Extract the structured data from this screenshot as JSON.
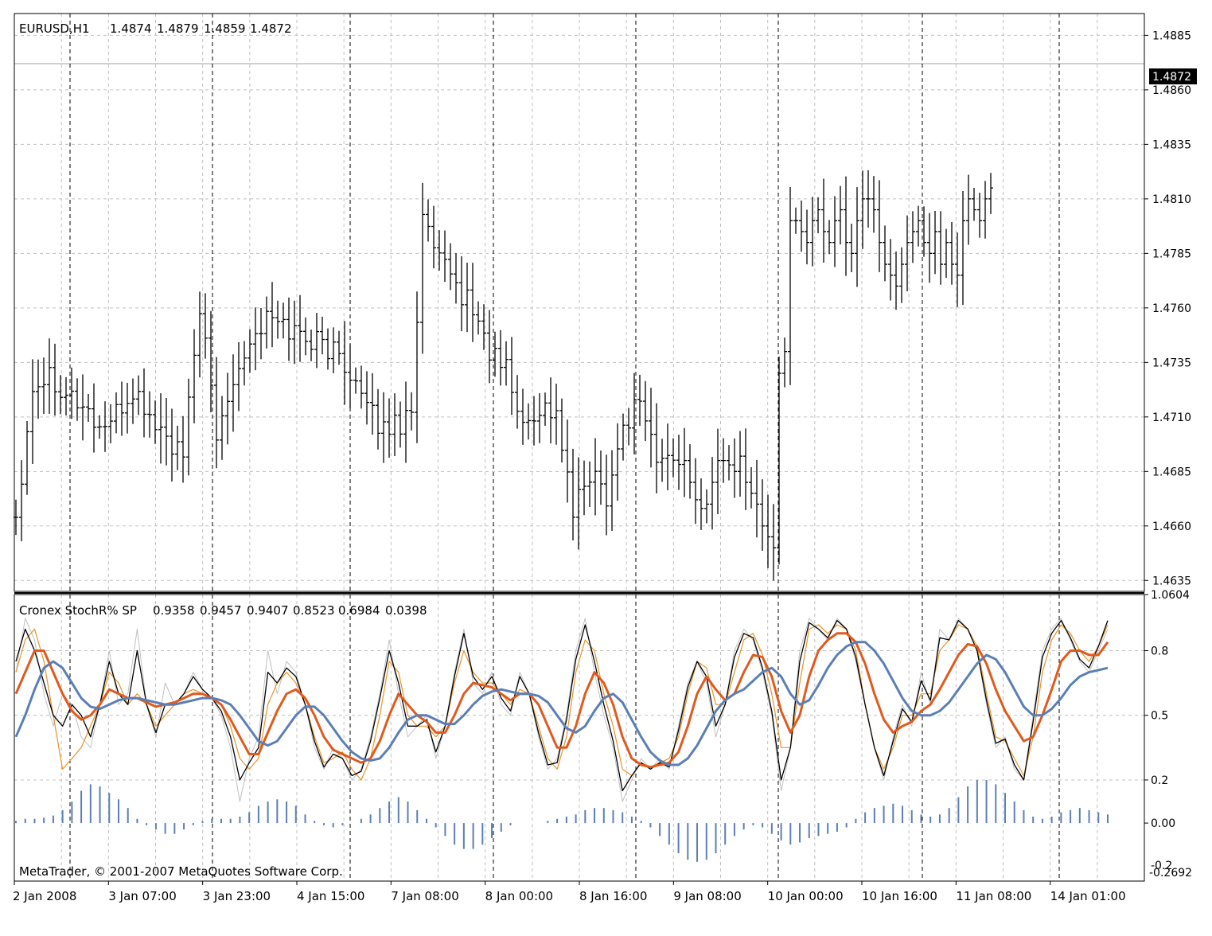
{
  "chart_data": [
    {
      "type": "ohlc",
      "panel": "price",
      "symbol_header": "EURUSD,H1",
      "ohlc_header": [
        "1.4874",
        "1.4879",
        "1.4859",
        "1.4872"
      ],
      "current_price": "1.4872",
      "current_value": 1.4872,
      "ylim": [
        1.463,
        1.4895
      ],
      "y_ticks": [
        1.4885,
        1.486,
        1.4835,
        1.481,
        1.4785,
        1.476,
        1.4735,
        1.471,
        1.4685,
        1.466,
        1.4635
      ],
      "y_tick_labels": [
        "1.4885",
        "1.4860",
        "1.4835",
        "1.4810",
        "1.4785",
        "1.4760",
        "1.4735",
        "1.4710",
        "1.4685",
        "1.4660",
        "1.4635"
      ],
      "grid": true,
      "bar_count": 172,
      "anchors_close": [
        [
          0,
          1.4665
        ],
        [
          3,
          1.4725
        ],
        [
          6,
          1.473
        ],
        [
          9,
          1.4722
        ],
        [
          12,
          1.4715
        ],
        [
          15,
          1.4705
        ],
        [
          18,
          1.471
        ],
        [
          21,
          1.4722
        ],
        [
          24,
          1.471
        ],
        [
          27,
          1.47
        ],
        [
          30,
          1.469
        ],
        [
          33,
          1.4762
        ],
        [
          36,
          1.47
        ],
        [
          39,
          1.473
        ],
        [
          42,
          1.4745
        ],
        [
          45,
          1.4755
        ],
        [
          48,
          1.4752
        ],
        [
          51,
          1.4748
        ],
        [
          54,
          1.4745
        ],
        [
          57,
          1.474
        ],
        [
          60,
          1.4732
        ],
        [
          63,
          1.4712
        ],
        [
          66,
          1.4705
        ],
        [
          69,
          1.4708
        ],
        [
          71,
          1.4715
        ],
        [
          73,
          1.48
        ],
        [
          76,
          1.478
        ],
        [
          79,
          1.477
        ],
        [
          82,
          1.476
        ],
        [
          85,
          1.474
        ],
        [
          88,
          1.4732
        ],
        [
          91,
          1.4705
        ],
        [
          94,
          1.4715
        ],
        [
          97,
          1.4712
        ],
        [
          100,
          1.4665
        ],
        [
          103,
          1.4685
        ],
        [
          106,
          1.4675
        ],
        [
          109,
          1.4705
        ],
        [
          112,
          1.472
        ],
        [
          115,
          1.469
        ],
        [
          118,
          1.469
        ],
        [
          121,
          1.4695
        ],
        [
          124,
          1.469
        ],
        [
          127,
          1.468
        ],
        [
          130,
          1.469
        ],
        [
          133,
          1.47
        ],
        [
          136,
          1.471
        ],
        [
          139,
          1.4715
        ],
        [
          142,
          1.4712
        ],
        [
          145,
          1.4715
        ],
        [
          148,
          1.472
        ],
        [
          151,
          1.4718
        ],
        [
          154,
          1.4712
        ],
        [
          157,
          1.471
        ],
        [
          160,
          1.4714
        ],
        [
          162,
          1.471
        ]
      ],
      "x_tick_labels": [
        "2 Jan 2008",
        "3 Jan 07:00",
        "3 Jan 23:00",
        "4 Jan 15:00",
        "7 Jan 08:00",
        "8 Jan 00:00",
        "8 Jan 16:00",
        "9 Jan 08:00",
        "10 Jan 00:00",
        "10 Jan 16:00",
        "11 Jan 08:00",
        "14 Jan 01:00"
      ],
      "day_separators_after_bars": [
        8,
        30,
        52,
        97,
        120,
        143,
        165
      ]
    },
    {
      "type": "line",
      "panel": "indicator",
      "title": "Cronex StochR% SP",
      "header_values": [
        "0.9358",
        "0.9457",
        "0.9407",
        "0.8523",
        "0.6984",
        "0.0398"
      ],
      "y_ticks": [
        1.0604,
        0.8,
        0.5,
        0.2,
        0.0
      ],
      "y_tick_labels": [
        "1.0604",
        "0.8",
        "0.5",
        "0.2",
        "0.00"
      ],
      "y_bottom_labels": [
        "-0.2",
        "-0.2692"
      ],
      "ylim": [
        -0.2692,
        1.0604
      ],
      "series": [
        {
          "color": "#c0c0c0",
          "width": 1,
          "values": [
            0.7,
            0.95,
            0.85,
            0.6,
            0.45,
            0.6,
            0.55,
            0.4,
            0.35,
            0.55,
            0.8,
            0.55,
            0.6,
            0.9,
            0.55,
            0.4,
            0.65,
            0.55,
            0.6,
            0.7,
            0.62,
            0.58,
            0.5,
            0.35,
            0.1,
            0.3,
            0.4,
            0.8,
            0.6,
            0.75,
            0.7,
            0.55,
            0.35,
            0.25,
            0.35,
            0.3,
            0.2,
            0.25,
            0.4,
            0.6,
            0.85,
            0.6,
            0.4,
            0.45,
            0.5,
            0.3,
            0.45,
            0.7,
            0.9,
            0.65,
            0.6,
            0.7,
            0.55,
            0.5,
            0.7,
            0.6,
            0.4,
            0.25,
            0.3,
            0.5,
            0.8,
            0.95,
            0.7,
            0.5,
            0.35,
            0.1,
            0.2,
            0.3,
            0.25,
            0.3,
            0.25,
            0.45,
            0.65,
            0.75,
            0.65,
            0.4,
            0.55,
            0.8,
            0.9,
            0.85,
            0.7,
            0.5,
            0.15,
            0.35,
            0.8,
            0.95,
            0.9,
            0.85,
            0.95,
            0.9,
            0.75,
            0.55,
            0.35,
            0.2,
            0.4,
            0.55,
            0.45,
            0.7,
            0.55,
            0.9,
            0.85,
            0.95,
            0.9,
            0.8,
            0.55,
            0.35,
            0.4,
            0.25,
            0.2,
            0.5,
            0.8,
            0.9,
            0.95,
            0.85,
            0.75,
            0.7,
            0.8,
            0.9
          ]
        },
        {
          "color": "#e8932a",
          "width": 1.2,
          "values": [
            0.7,
            0.85,
            0.9,
            0.75,
            0.5,
            0.25,
            0.3,
            0.35,
            0.45,
            0.55,
            0.7,
            0.65,
            0.55,
            0.6,
            0.55,
            0.45,
            0.5,
            0.55,
            0.6,
            0.62,
            0.6,
            0.58,
            0.55,
            0.45,
            0.3,
            0.25,
            0.3,
            0.55,
            0.65,
            0.7,
            0.65,
            0.55,
            0.4,
            0.28,
            0.3,
            0.33,
            0.25,
            0.2,
            0.3,
            0.5,
            0.75,
            0.7,
            0.5,
            0.45,
            0.45,
            0.4,
            0.45,
            0.65,
            0.8,
            0.7,
            0.65,
            0.65,
            0.6,
            0.55,
            0.62,
            0.6,
            0.45,
            0.3,
            0.25,
            0.4,
            0.7,
            0.85,
            0.8,
            0.6,
            0.45,
            0.25,
            0.22,
            0.28,
            0.26,
            0.28,
            0.3,
            0.4,
            0.6,
            0.75,
            0.72,
            0.55,
            0.55,
            0.7,
            0.85,
            0.88,
            0.78,
            0.6,
            0.35,
            0.35,
            0.65,
            0.9,
            0.92,
            0.88,
            0.92,
            0.9,
            0.8,
            0.55,
            0.35,
            0.25,
            0.35,
            0.5,
            0.5,
            0.6,
            0.6,
            0.8,
            0.85,
            0.92,
            0.9,
            0.82,
            0.6,
            0.4,
            0.38,
            0.3,
            0.22,
            0.4,
            0.7,
            0.85,
            0.92,
            0.88,
            0.8,
            0.75,
            0.82,
            0.92
          ]
        },
        {
          "color": "#000000",
          "width": 1.3,
          "values": [
            0.75,
            0.9,
            0.8,
            0.65,
            0.5,
            0.45,
            0.55,
            0.5,
            0.4,
            0.55,
            0.75,
            0.6,
            0.55,
            0.8,
            0.55,
            0.42,
            0.55,
            0.55,
            0.6,
            0.68,
            0.62,
            0.58,
            0.52,
            0.4,
            0.2,
            0.28,
            0.35,
            0.7,
            0.65,
            0.72,
            0.68,
            0.55,
            0.38,
            0.26,
            0.32,
            0.3,
            0.22,
            0.24,
            0.38,
            0.58,
            0.8,
            0.65,
            0.45,
            0.45,
            0.48,
            0.33,
            0.45,
            0.68,
            0.88,
            0.68,
            0.62,
            0.68,
            0.58,
            0.52,
            0.68,
            0.6,
            0.42,
            0.27,
            0.28,
            0.48,
            0.76,
            0.92,
            0.75,
            0.55,
            0.38,
            0.15,
            0.22,
            0.28,
            0.25,
            0.28,
            0.26,
            0.43,
            0.63,
            0.75,
            0.68,
            0.45,
            0.55,
            0.77,
            0.88,
            0.86,
            0.72,
            0.52,
            0.2,
            0.35,
            0.75,
            0.93,
            0.9,
            0.86,
            0.94,
            0.9,
            0.77,
            0.55,
            0.35,
            0.22,
            0.38,
            0.53,
            0.47,
            0.66,
            0.57,
            0.86,
            0.85,
            0.94,
            0.9,
            0.8,
            0.57,
            0.37,
            0.39,
            0.27,
            0.2,
            0.47,
            0.77,
            0.88,
            0.94,
            0.86,
            0.76,
            0.72,
            0.82,
            0.94
          ]
        },
        {
          "color": "#e05a1e",
          "width": 3,
          "values": [
            0.6,
            0.7,
            0.8,
            0.8,
            0.7,
            0.6,
            0.52,
            0.48,
            0.5,
            0.55,
            0.62,
            0.6,
            0.58,
            0.58,
            0.56,
            0.54,
            0.55,
            0.56,
            0.58,
            0.6,
            0.6,
            0.58,
            0.55,
            0.48,
            0.4,
            0.32,
            0.32,
            0.42,
            0.52,
            0.6,
            0.62,
            0.58,
            0.5,
            0.4,
            0.34,
            0.32,
            0.3,
            0.28,
            0.3,
            0.38,
            0.5,
            0.6,
            0.55,
            0.5,
            0.47,
            0.42,
            0.42,
            0.5,
            0.6,
            0.65,
            0.64,
            0.63,
            0.6,
            0.57,
            0.6,
            0.6,
            0.55,
            0.45,
            0.35,
            0.35,
            0.45,
            0.6,
            0.7,
            0.65,
            0.55,
            0.4,
            0.3,
            0.27,
            0.26,
            0.27,
            0.28,
            0.33,
            0.45,
            0.6,
            0.68,
            0.62,
            0.57,
            0.6,
            0.7,
            0.78,
            0.77,
            0.68,
            0.52,
            0.42,
            0.5,
            0.68,
            0.8,
            0.85,
            0.88,
            0.88,
            0.84,
            0.74,
            0.6,
            0.48,
            0.42,
            0.45,
            0.47,
            0.52,
            0.55,
            0.62,
            0.7,
            0.78,
            0.83,
            0.82,
            0.74,
            0.62,
            0.52,
            0.45,
            0.38,
            0.4,
            0.5,
            0.62,
            0.75,
            0.8,
            0.8,
            0.78,
            0.78,
            0.84
          ]
        },
        {
          "color": "#5b7fb5",
          "width": 3,
          "values": [
            0.4,
            0.5,
            0.62,
            0.72,
            0.75,
            0.72,
            0.65,
            0.58,
            0.54,
            0.53,
            0.55,
            0.57,
            0.58,
            0.58,
            0.57,
            0.56,
            0.55,
            0.55,
            0.56,
            0.57,
            0.58,
            0.58,
            0.57,
            0.55,
            0.5,
            0.44,
            0.38,
            0.36,
            0.38,
            0.44,
            0.5,
            0.54,
            0.54,
            0.5,
            0.44,
            0.38,
            0.33,
            0.3,
            0.29,
            0.3,
            0.35,
            0.42,
            0.48,
            0.5,
            0.5,
            0.48,
            0.46,
            0.46,
            0.5,
            0.55,
            0.59,
            0.61,
            0.62,
            0.61,
            0.6,
            0.6,
            0.59,
            0.56,
            0.5,
            0.44,
            0.42,
            0.45,
            0.52,
            0.58,
            0.6,
            0.56,
            0.48,
            0.4,
            0.33,
            0.29,
            0.27,
            0.27,
            0.3,
            0.36,
            0.44,
            0.52,
            0.57,
            0.6,
            0.62,
            0.66,
            0.7,
            0.72,
            0.68,
            0.6,
            0.55,
            0.57,
            0.64,
            0.72,
            0.78,
            0.82,
            0.84,
            0.84,
            0.8,
            0.74,
            0.66,
            0.58,
            0.52,
            0.5,
            0.5,
            0.52,
            0.56,
            0.62,
            0.68,
            0.74,
            0.78,
            0.76,
            0.7,
            0.62,
            0.54,
            0.5,
            0.5,
            0.53,
            0.58,
            0.64,
            0.68,
            0.7,
            0.71,
            0.72
          ]
        }
      ],
      "histogram": {
        "color": "#5b7fb5",
        "values": [
          0.01,
          0.02,
          0.02,
          0.025,
          0.035,
          0.06,
          0.1,
          0.15,
          0.18,
          0.17,
          0.14,
          0.11,
          0.07,
          0.02,
          -0.01,
          -0.03,
          -0.05,
          -0.05,
          -0.03,
          -0.01,
          0.01,
          0.02,
          0.02,
          0.02,
          0.03,
          0.05,
          0.08,
          0.1,
          0.11,
          0.1,
          0.08,
          0.04,
          0.01,
          -0.01,
          -0.02,
          -0.01,
          0.0,
          0.02,
          0.04,
          0.07,
          0.1,
          0.12,
          0.1,
          0.06,
          0.02,
          -0.02,
          -0.06,
          -0.1,
          -0.12,
          -0.12,
          -0.1,
          -0.07,
          -0.04,
          -0.01,
          0.0,
          0.0,
          0.0,
          0.01,
          0.02,
          0.03,
          0.04,
          0.06,
          0.07,
          0.07,
          0.06,
          0.05,
          0.03,
          0.01,
          -0.02,
          -0.06,
          -0.1,
          -0.14,
          -0.17,
          -0.18,
          -0.17,
          -0.14,
          -0.1,
          -0.06,
          -0.03,
          -0.01,
          -0.02,
          -0.05,
          -0.08,
          -0.1,
          -0.09,
          -0.07,
          -0.06,
          -0.05,
          -0.04,
          -0.02,
          0.02,
          0.05,
          0.07,
          0.08,
          0.09,
          0.08,
          0.06,
          0.04,
          0.03,
          0.04,
          0.07,
          0.12,
          0.17,
          0.2,
          0.2,
          0.18,
          0.14,
          0.1,
          0.06,
          0.03,
          0.02,
          0.03,
          0.05,
          0.06,
          0.07,
          0.06,
          0.05,
          0.04
        ]
      }
    }
  ],
  "watermark": "MetaTrader, © 2001-2007 MetaQuotes Software Corp."
}
